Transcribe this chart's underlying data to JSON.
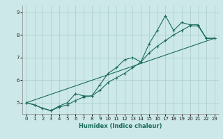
{
  "xlabel": "Humidex (Indice chaleur)",
  "background_color": "#cce8e8",
  "grid_color": "#aacccc",
  "line_color": "#1a6b5a",
  "xlim": [
    -0.5,
    23.5
  ],
  "ylim": [
    4.5,
    9.3
  ],
  "yticks": [
    5,
    6,
    7,
    8,
    9
  ],
  "xticks": [
    0,
    1,
    2,
    3,
    4,
    5,
    6,
    7,
    8,
    9,
    10,
    11,
    12,
    13,
    14,
    15,
    16,
    17,
    18,
    19,
    20,
    21,
    22,
    23
  ],
  "line1_x": [
    0,
    1,
    2,
    3,
    4,
    5,
    6,
    7,
    8,
    9,
    10,
    11,
    12,
    13,
    14,
    15,
    16,
    17,
    18,
    19,
    20,
    21,
    22,
    23
  ],
  "line1_y": [
    5.0,
    4.9,
    4.75,
    4.65,
    4.8,
    4.9,
    5.1,
    5.25,
    5.3,
    5.55,
    5.9,
    6.1,
    6.3,
    6.55,
    6.8,
    7.2,
    7.5,
    7.75,
    8.0,
    8.2,
    8.4,
    8.4,
    7.85,
    7.85
  ],
  "line2_x": [
    0,
    1,
    2,
    3,
    4,
    5,
    6,
    7,
    8,
    9,
    10,
    11,
    12,
    13,
    14,
    15,
    16,
    17,
    18,
    19,
    20,
    21,
    22,
    23
  ],
  "line2_y": [
    5.0,
    4.9,
    4.75,
    4.65,
    4.85,
    5.0,
    5.4,
    5.3,
    5.3,
    5.8,
    6.3,
    6.55,
    6.9,
    7.0,
    6.8,
    7.6,
    8.2,
    8.85,
    8.2,
    8.55,
    8.45,
    8.45,
    7.85,
    7.85
  ],
  "line3_x": [
    0,
    23
  ],
  "line3_y": [
    5.0,
    7.85
  ]
}
